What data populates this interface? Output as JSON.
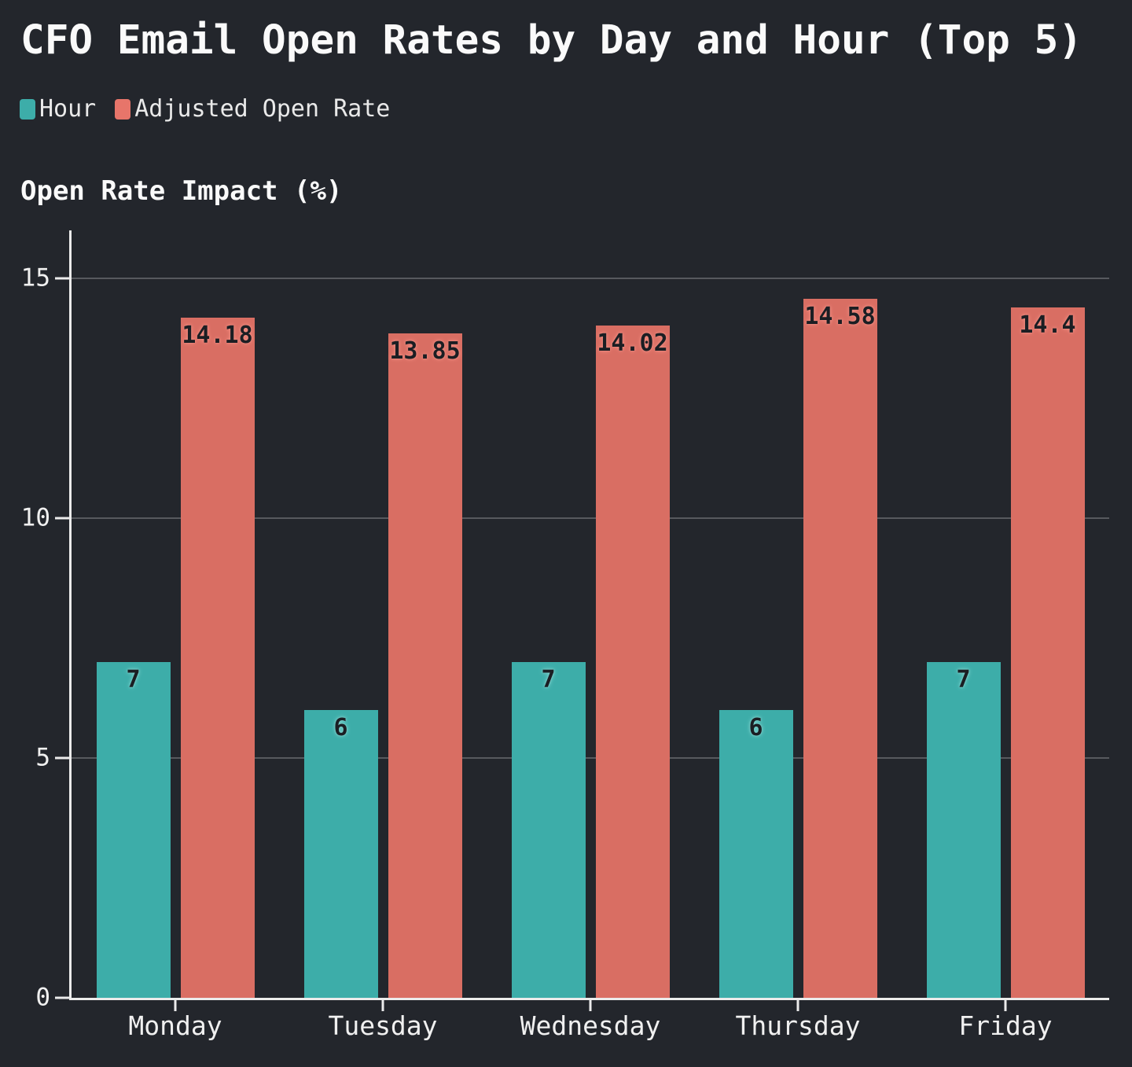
{
  "title": "CFO Email Open Rates by Day and Hour (Top 5)",
  "y_axis_title": "Open Rate Impact (%)",
  "legend": {
    "items": [
      {
        "label": "Hour",
        "color": "#3dada9"
      },
      {
        "label": "Adjusted Open Rate",
        "color": "#e7756a"
      }
    ]
  },
  "chart_data": {
    "type": "bar",
    "title": "CFO Email Open Rates by Day and Hour (Top 5)",
    "ylabel": "Open Rate Impact (%)",
    "xlabel": "",
    "categories": [
      "Monday",
      "Tuesday",
      "Wednesday",
      "Thursday",
      "Friday"
    ],
    "series": [
      {
        "name": "Hour",
        "color": "#3dada9",
        "label_glow": "#8ad8d3",
        "values": [
          7,
          6,
          7,
          6,
          7
        ]
      },
      {
        "name": "Adjusted Open Rate",
        "color": "#d96e63",
        "label_glow": "#f59287",
        "values": [
          14.18,
          13.85,
          14.02,
          14.58,
          14.4
        ]
      }
    ],
    "yticks": [
      0,
      5,
      10,
      15
    ],
    "ylim": [
      0,
      16
    ],
    "grid": true,
    "legend_position": "top-left",
    "colors": {
      "background": "#23262c",
      "axis": "#ebebeb",
      "gridline": "rgba(255,255,255,0.24)",
      "text": "#f0f0f0",
      "bar_label": "#1b1e23"
    }
  }
}
